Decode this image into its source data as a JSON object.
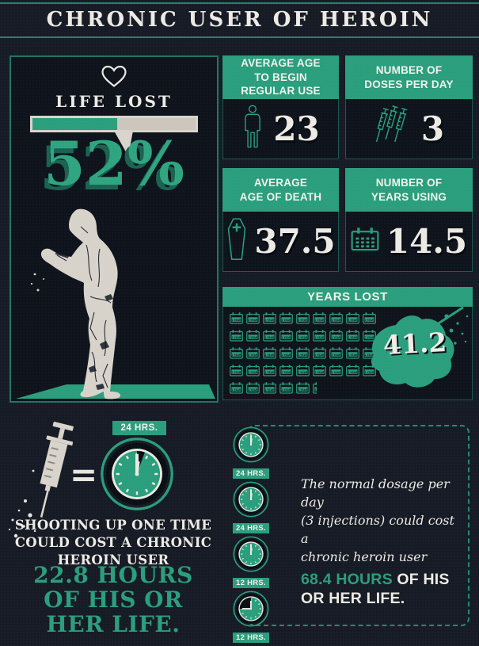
{
  "title": "CHRONIC USER OF HEROIN",
  "colors": {
    "accent": "#2A9E7D",
    "background": "#161B25",
    "panel": "#0E131C",
    "off_white": "#EDEAE4",
    "bar_gray": "#CCC6BC",
    "shadow_green": "#1A6350"
  },
  "life_lost": {
    "heading": "LIFE LOST",
    "percent_text": "52%",
    "percent_value": 52
  },
  "stats": [
    {
      "title": "AVERAGE AGE\nTO BEGIN\nREGULAR USE",
      "value": "23",
      "icon": "person-icon"
    },
    {
      "title": "NUMBER OF\nDOSES PER DAY",
      "value": "3",
      "icon": "syringes-icon"
    },
    {
      "title": "AVERAGE\nAGE OF DEATH",
      "value": "37.5",
      "icon": "coffin-icon"
    },
    {
      "title": "NUMBER OF\nYEARS USING",
      "value": "14.5",
      "icon": "calendar-icon"
    }
  ],
  "years_lost": {
    "heading": "YEARS LOST",
    "value": "41.2",
    "unit_label": "1 YEAR",
    "full_units": 41,
    "partial_unit": 0.2,
    "units_per_row": 9
  },
  "shooting_up": {
    "clock_label": "24 HRS.",
    "equals_sign": "=",
    "description": "SHOOTING UP ONE TIME\nCOULD COST A CHRONIC\nHEROIN USER",
    "highlight": "22.8 HOURS\nOF HIS OR\nHER LIFE."
  },
  "daily_dosage": {
    "clocks": [
      {
        "label": "24 HRS.",
        "partial": false
      },
      {
        "label": "24 HRS.",
        "partial": false
      },
      {
        "label": "12 HRS.",
        "partial": false
      },
      {
        "label": "12 HRS.",
        "partial": true
      }
    ],
    "script_text": "The normal dosage per day\n(3 injections) could cost a\nchronic heroin user",
    "highlight_green": "68.4 HOURS",
    "highlight_white": " OF HIS OR HER LIFE."
  }
}
